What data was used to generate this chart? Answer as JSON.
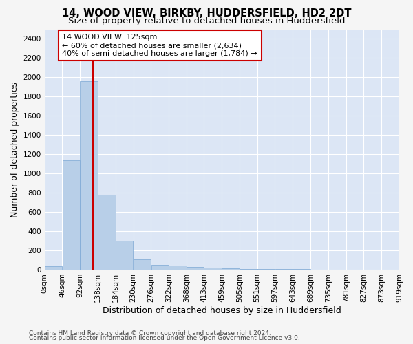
{
  "title": "14, WOOD VIEW, BIRKBY, HUDDERSFIELD, HD2 2DT",
  "subtitle": "Size of property relative to detached houses in Huddersfield",
  "xlabel": "Distribution of detached houses by size in Huddersfield",
  "ylabel": "Number of detached properties",
  "footnote1": "Contains HM Land Registry data © Crown copyright and database right 2024.",
  "footnote2": "Contains public sector information licensed under the Open Government Licence v3.0.",
  "bin_edges": [
    0,
    46,
    92,
    138,
    184,
    230,
    276,
    322,
    368,
    413,
    459,
    505,
    551,
    597,
    643,
    689,
    735,
    781,
    827,
    873,
    919
  ],
  "bar_heights": [
    35,
    1140,
    1960,
    780,
    300,
    105,
    50,
    40,
    30,
    20,
    15,
    10,
    8,
    5,
    4,
    3,
    2,
    2,
    1,
    1
  ],
  "bar_color": "#b8cfe8",
  "bar_edgecolor": "#7ba7d4",
  "property_size": 125,
  "vline_color": "#cc0000",
  "annotation_text": "14 WOOD VIEW: 125sqm\n← 60% of detached houses are smaller (2,634)\n40% of semi-detached houses are larger (1,784) →",
  "annotation_box_color": "#ffffff",
  "annotation_box_edgecolor": "#cc0000",
  "ylim": [
    0,
    2500
  ],
  "yticks": [
    0,
    200,
    400,
    600,
    800,
    1000,
    1200,
    1400,
    1600,
    1800,
    2000,
    2200,
    2400
  ],
  "background_color": "#dce6f5",
  "fig_background_color": "#f5f5f5",
  "grid_color": "#ffffff",
  "title_fontsize": 10.5,
  "subtitle_fontsize": 9.5,
  "axis_label_fontsize": 9,
  "tick_fontsize": 7.5,
  "footnote_fontsize": 6.5,
  "annotation_fontsize": 8
}
